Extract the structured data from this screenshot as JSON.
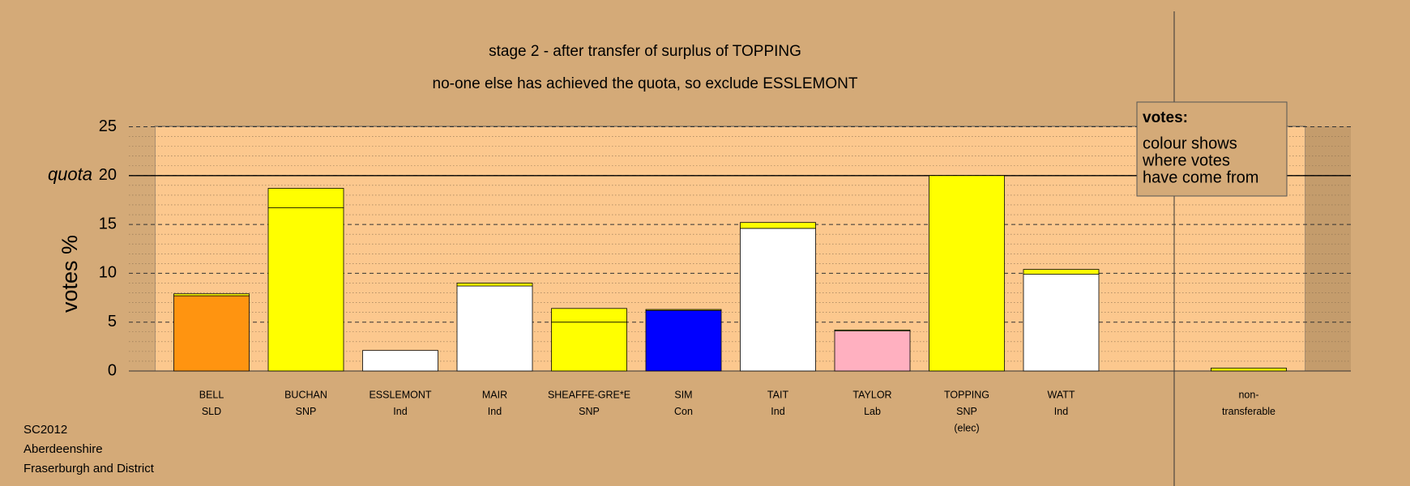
{
  "chart_data": {
    "type": "stacked_bar",
    "title": "stage 2 - after transfer of surplus of TOPPING",
    "subtitle": "no-one else has achieved the quota, so exclude ESSLEMONT",
    "y_label": "votes %",
    "categories": [
      [
        "BELL",
        "SLD"
      ],
      [
        "BUCHAN",
        "SNP"
      ],
      [
        "ESSLEMONT",
        "Ind"
      ],
      [
        "MAIR",
        "Ind"
      ],
      [
        "SHEAFFE-GRE*E",
        "SNP"
      ],
      [
        "SIM",
        "Con"
      ],
      [
        "TAIT",
        "Ind"
      ],
      [
        "TAYLOR",
        "Lab"
      ],
      [
        "TOPPING",
        "SNP",
        "(elec)"
      ],
      [
        "WATT",
        "Ind"
      ],
      [
        "non-",
        "transferable"
      ]
    ],
    "series": [
      {
        "colors": [
          "#ff9410",
          "#ffff00",
          "#ffffff",
          "#ffffff",
          "#ffff00",
          "#0000ff",
          "#ffffff",
          "#ffb0c0",
          "#ffff00",
          "#ffffff",
          null
        ],
        "values": [
          7.7,
          16.7,
          2.1,
          8.7,
          5.0,
          6.2,
          14.6,
          4.1,
          20,
          9.9,
          null
        ]
      },
      {
        "color": "#ffff00",
        "values": [
          0.2,
          2.0,
          0,
          0.3,
          1.4,
          0.1,
          0.6,
          0.1,
          0,
          0.5,
          0.3
        ]
      }
    ],
    "ylim": [
      0,
      25
    ],
    "yticks": [
      0,
      5,
      10,
      15,
      20,
      25
    ],
    "minor_yticks": [
      1,
      2,
      3,
      4,
      6,
      7,
      8,
      9,
      11,
      12,
      13,
      14,
      16,
      17,
      18,
      19,
      21,
      22,
      23,
      24
    ],
    "quota": {
      "label": "quota",
      "value": 20
    },
    "grid": true,
    "legend_box": {
      "title": "votes:",
      "lines": [
        "colour shows",
        "where votes",
        "have come from"
      ]
    },
    "footer": [
      "SC2012",
      "Aberdeenshire",
      "Fraserburgh and District"
    ]
  }
}
